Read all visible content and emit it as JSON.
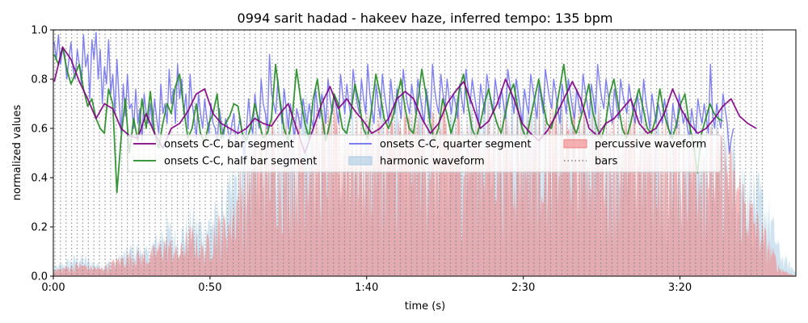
{
  "chart_data": {
    "type": "line",
    "title": "0994 sarit hadad - hakeev haze, inferred tempo: 135 bpm",
    "xlabel": "time (s)",
    "ylabel": "normalized values",
    "xlim": [
      0,
      237
    ],
    "ylim": [
      0,
      1.0
    ],
    "x_ticks": [
      {
        "value": 0,
        "label": "0:00"
      },
      {
        "value": 50,
        "label": "0:50"
      },
      {
        "value": 100,
        "label": "1:40"
      },
      {
        "value": 150,
        "label": "2:30"
      },
      {
        "value": 200,
        "label": "3:20"
      }
    ],
    "y_ticks": [
      {
        "value": 0.0,
        "label": "0.0"
      },
      {
        "value": 0.2,
        "label": "0.2"
      },
      {
        "value": 0.4,
        "label": "0.4"
      },
      {
        "value": 0.6,
        "label": "0.6"
      },
      {
        "value": 0.8,
        "label": "0.8"
      },
      {
        "value": 1.0,
        "label": "1.0"
      }
    ],
    "tempo_bpm": 135,
    "bars": {
      "name": "bars",
      "start": 0.5,
      "end": 228,
      "interval": 1.778,
      "color": "#808080",
      "style": "dotted"
    },
    "legend": {
      "placement": "center",
      "columns": 3,
      "entries": [
        {
          "label": "onsets C-C, bar segment",
          "color": "#800080",
          "kind": "line"
        },
        {
          "label": "onsets C-C, half bar segment",
          "color": "#228B22",
          "kind": "line"
        },
        {
          "label": "onsets C-C, quarter segment",
          "color": "#6B6BF0",
          "kind": "line"
        },
        {
          "label": "harmonic waveform",
          "color": "#a9cce3",
          "kind": "patch"
        },
        {
          "label": "percussive waveform",
          "color": "#f08080",
          "kind": "patch"
        },
        {
          "label": "bars",
          "color": "#808080",
          "kind": "dotted"
        }
      ]
    },
    "series": [
      {
        "name": "onsets C-C, bar segment",
        "color": "#800080",
        "x_step": 2.667,
        "values": [
          0.79,
          0.93,
          0.88,
          0.79,
          0.72,
          0.64,
          0.7,
          0.68,
          0.6,
          0.57,
          0.56,
          0.66,
          0.58,
          0.52,
          0.6,
          0.62,
          0.67,
          0.74,
          0.76,
          0.66,
          0.62,
          0.6,
          0.58,
          0.6,
          0.64,
          0.62,
          0.61,
          0.66,
          0.7,
          0.6,
          0.5,
          0.6,
          0.7,
          0.77,
          0.68,
          0.72,
          0.67,
          0.63,
          0.58,
          0.6,
          0.64,
          0.72,
          0.75,
          0.72,
          0.64,
          0.58,
          0.62,
          0.7,
          0.75,
          0.79,
          0.7,
          0.6,
          0.63,
          0.7,
          0.8,
          0.72,
          0.62,
          0.58,
          0.55,
          0.59,
          0.65,
          0.72,
          0.79,
          0.72,
          0.6,
          0.57,
          0.62,
          0.64,
          0.68,
          0.72,
          0.62,
          0.58,
          0.6,
          0.66,
          0.76,
          0.68,
          0.62,
          0.58,
          0.6,
          0.64,
          0.69,
          0.72,
          0.65,
          0.62,
          0.6
        ]
      },
      {
        "name": "onsets C-C, half bar segment",
        "color": "#228B22",
        "x_step": 1.333,
        "values": [
          0.9,
          0.86,
          0.93,
          0.84,
          0.78,
          0.82,
          0.86,
          0.76,
          0.69,
          0.72,
          0.64,
          0.6,
          0.58,
          0.76,
          0.7,
          0.34,
          0.56,
          0.72,
          0.5,
          0.64,
          0.55,
          0.72,
          0.6,
          0.75,
          0.58,
          0.52,
          0.62,
          0.7,
          0.66,
          0.77,
          0.82,
          0.68,
          0.56,
          0.6,
          0.7,
          0.58,
          0.54,
          0.62,
          0.66,
          0.74,
          0.56,
          0.62,
          0.65,
          0.7,
          0.69,
          0.58,
          0.55,
          0.6,
          0.7,
          0.63,
          0.56,
          0.58,
          0.64,
          0.86,
          0.72,
          0.6,
          0.55,
          0.65,
          0.84,
          0.72,
          0.62,
          0.56,
          0.72,
          0.8,
          0.66,
          0.55,
          0.62,
          0.74,
          0.7,
          0.6,
          0.58,
          0.66,
          0.78,
          0.7,
          0.6,
          0.56,
          0.68,
          0.82,
          0.74,
          0.64,
          0.6,
          0.64,
          0.72,
          0.8,
          0.68,
          0.6,
          0.58,
          0.7,
          0.84,
          0.74,
          0.62,
          0.55,
          0.6,
          0.72,
          0.66,
          0.58,
          0.64,
          0.76,
          0.82,
          0.7,
          0.6,
          0.56,
          0.62,
          0.7,
          0.76,
          0.68,
          0.62,
          0.58,
          0.66,
          0.74,
          0.78,
          0.68,
          0.6,
          0.56,
          0.64,
          0.72,
          0.8,
          0.7,
          0.62,
          0.6,
          0.66,
          0.76,
          0.86,
          0.72,
          0.62,
          0.58,
          0.64,
          0.7,
          0.78,
          0.66,
          0.6,
          0.56,
          0.62,
          0.74,
          0.8,
          0.7,
          0.6,
          0.56,
          0.62,
          0.7,
          0.76,
          0.68,
          0.6,
          0.58,
          0.64,
          0.76,
          0.66,
          0.6,
          0.56,
          0.62,
          0.7,
          0.74,
          0.62,
          0.54,
          0.42,
          0.58,
          0.64,
          0.7,
          0.66,
          0.64,
          0.63
        ]
      },
      {
        "name": "onsets C-C, quarter segment",
        "color": "#6B6BF0",
        "x_step": 0.667,
        "values": [
          0.95,
          0.88,
          0.98,
          0.86,
          0.93,
          0.9,
          0.8,
          0.88,
          0.95,
          0.84,
          0.8,
          0.92,
          0.86,
          0.78,
          0.98,
          0.85,
          0.9,
          0.72,
          0.96,
          0.88,
          0.99,
          0.8,
          0.92,
          0.7,
          0.85,
          0.78,
          0.96,
          0.74,
          0.82,
          0.66,
          0.88,
          0.72,
          0.58,
          0.78,
          0.65,
          0.82,
          0.68,
          0.7,
          0.6,
          0.76,
          0.62,
          0.68,
          0.55,
          0.74,
          0.66,
          0.62,
          0.7,
          0.6,
          0.72,
          0.64,
          0.58,
          0.78,
          0.66,
          0.7,
          0.62,
          0.84,
          0.7,
          0.76,
          0.62,
          0.86,
          0.72,
          0.8,
          0.66,
          0.74,
          0.6,
          0.82,
          0.7,
          0.64,
          0.56,
          0.74,
          0.66,
          0.6,
          0.72,
          0.64,
          0.58,
          0.7,
          0.62,
          0.6,
          0.54,
          0.68,
          0.62,
          0.56,
          0.64,
          0.6,
          0.55,
          0.62,
          0.66,
          0.52,
          0.6,
          0.64,
          0.58,
          0.48,
          0.6,
          0.72,
          0.62,
          0.58,
          0.74,
          0.66,
          0.6,
          0.8,
          0.7,
          0.66,
          0.6,
          0.9,
          0.74,
          0.7,
          0.66,
          0.8,
          0.7,
          0.62,
          0.76,
          0.68,
          0.6,
          0.7,
          0.62,
          0.56,
          0.68,
          0.64,
          0.6,
          0.72,
          0.66,
          0.62,
          0.7,
          0.64,
          0.6,
          0.76,
          0.68,
          0.64,
          0.74,
          0.7,
          0.62,
          0.8,
          0.72,
          0.66,
          0.74,
          0.68,
          0.62,
          0.82,
          0.74,
          0.66,
          0.78,
          0.7,
          0.64,
          0.84,
          0.76,
          0.7,
          0.66,
          0.8,
          0.72,
          0.66,
          0.86,
          0.74,
          0.68,
          0.62,
          0.78,
          0.7,
          0.64,
          0.82,
          0.74,
          0.68,
          0.62,
          0.8,
          0.72,
          0.66,
          0.76,
          0.7,
          0.64,
          0.84,
          0.76,
          0.7,
          0.66,
          0.78,
          0.72,
          0.66,
          0.8,
          0.74,
          0.68,
          0.62,
          0.76,
          0.7,
          0.64,
          0.86,
          0.76,
          0.7,
          0.66,
          0.82,
          0.74,
          0.68,
          0.8,
          0.72,
          0.66,
          0.74,
          0.7,
          0.64,
          0.78,
          0.72,
          0.66,
          0.84,
          0.76,
          0.7,
          0.8,
          0.74,
          0.68,
          0.62,
          0.78,
          0.72,
          0.66,
          0.82,
          0.76,
          0.7,
          0.66,
          0.8,
          0.74,
          0.68,
          0.76,
          0.7,
          0.64,
          0.84,
          0.78,
          0.72,
          0.66,
          0.8,
          0.74,
          0.68,
          0.62,
          0.76,
          0.7,
          0.66,
          0.82,
          0.76,
          0.7,
          0.64,
          0.78,
          0.72,
          0.66,
          0.84,
          0.78,
          0.72,
          0.68,
          0.8,
          0.74,
          0.68,
          0.62,
          0.78,
          0.72,
          0.66,
          0.8,
          0.74,
          0.68,
          0.64,
          0.76,
          0.7,
          0.66,
          0.82,
          0.76,
          0.7,
          0.64,
          0.78,
          0.72,
          0.66,
          0.86,
          0.78,
          0.72,
          0.68,
          0.8,
          0.74,
          0.68,
          0.62,
          0.76,
          0.7,
          0.64,
          0.8,
          0.74,
          0.7,
          0.66,
          0.78,
          0.72,
          0.66,
          0.62,
          0.74,
          0.68,
          0.62,
          0.8,
          0.72,
          0.66,
          0.6,
          0.74,
          0.68,
          0.62,
          0.7,
          0.66,
          0.62,
          0.72,
          0.66,
          0.6,
          0.56,
          0.7,
          0.64,
          0.6,
          0.74,
          0.68,
          0.62,
          0.66,
          0.6,
          0.56,
          0.68,
          0.62,
          0.58,
          0.72,
          0.66,
          0.62,
          0.7,
          0.64,
          0.58,
          0.86,
          0.66,
          0.6,
          0.7,
          0.64,
          0.6,
          0.74,
          0.68,
          0.62,
          0.5,
          0.56,
          0.6
        ]
      },
      {
        "name": "harmonic waveform",
        "kind": "area",
        "color": "#a9cce3",
        "envelope": [
          [
            0,
            0.04
          ],
          [
            8,
            0.1
          ],
          [
            15,
            0.06
          ],
          [
            20,
            0.08
          ],
          [
            26,
            0.16
          ],
          [
            30,
            0.12
          ],
          [
            36,
            0.26
          ],
          [
            40,
            0.2
          ],
          [
            44,
            0.3
          ],
          [
            48,
            0.26
          ],
          [
            52,
            0.32
          ],
          [
            56,
            0.42
          ],
          [
            60,
            0.6
          ],
          [
            66,
            0.75
          ],
          [
            90,
            0.78
          ],
          [
            120,
            0.8
          ],
          [
            150,
            0.8
          ],
          [
            180,
            0.78
          ],
          [
            200,
            0.72
          ],
          [
            215,
            0.66
          ],
          [
            222,
            0.5
          ],
          [
            228,
            0.36
          ],
          [
            232,
            0.12
          ],
          [
            237,
            0.02
          ]
        ]
      },
      {
        "name": "percussive waveform",
        "kind": "area",
        "color": "#f08080",
        "envelope": [
          [
            0,
            0.03
          ],
          [
            8,
            0.06
          ],
          [
            15,
            0.04
          ],
          [
            20,
            0.08
          ],
          [
            26,
            0.12
          ],
          [
            30,
            0.1
          ],
          [
            36,
            0.18
          ],
          [
            40,
            0.12
          ],
          [
            44,
            0.22
          ],
          [
            48,
            0.14
          ],
          [
            52,
            0.26
          ],
          [
            56,
            0.28
          ],
          [
            60,
            0.48
          ],
          [
            66,
            0.68
          ],
          [
            90,
            0.72
          ],
          [
            120,
            0.74
          ],
          [
            150,
            0.74
          ],
          [
            180,
            0.72
          ],
          [
            200,
            0.68
          ],
          [
            215,
            0.6
          ],
          [
            222,
            0.36
          ],
          [
            228,
            0.18
          ],
          [
            232,
            0.04
          ],
          [
            237,
            0.0
          ]
        ]
      }
    ]
  }
}
